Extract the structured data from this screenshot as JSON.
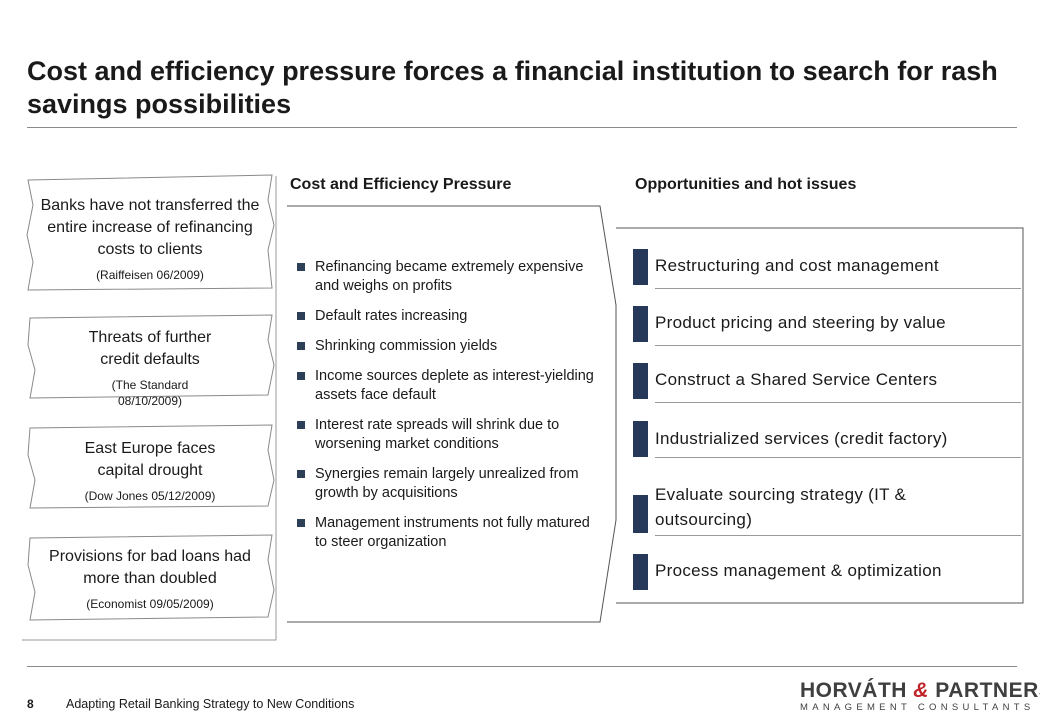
{
  "title": "Cost and efficiency pressure forces a financial institution to search for rash savings possibilities",
  "clippings": [
    {
      "headline": "Banks have not transferred the entire increase of refinancing costs to clients",
      "source": "(Raiffeisen 06/2009)"
    },
    {
      "headline": "Threats of further credit defaults",
      "source": "(The  Standard 08/10/2009)"
    },
    {
      "headline": "East Europe faces capital drought",
      "source": "(Dow Jones 05/12/2009)"
    },
    {
      "headline": "Provisions for bad loans had more than doubled",
      "source": "(Economist 09/05/2009)"
    }
  ],
  "pressure": {
    "heading": "Cost and Efficiency Pressure",
    "bullets": [
      "Refinancing became extremely expensive and weighs on profits",
      "Default rates increasing",
      "Shrinking commission yields",
      "Income sources deplete as interest-yielding assets face default",
      "Interest rate spreads will shrink due to worsening market conditions",
      "Synergies remain largely unrealized from growth by acquisitions",
      "Management instruments not fully matured to steer organization"
    ]
  },
  "opportunities": {
    "heading": "Opportunities and hot issues",
    "items": [
      "Restructuring and cost management",
      "Product pricing and steering by value",
      "Construct a Shared Service Centers",
      "Industrialized services (credit factory)",
      "Evaluate sourcing strategy (IT & outsourcing)",
      "Process management & optimization"
    ]
  },
  "footer": {
    "page_number": "8",
    "text": "Adapting Retail Banking Strategy to New Conditions"
  },
  "logo": {
    "part1": "HORVÁTH ",
    "amp": "&",
    "part2": " PARTNERS",
    "subtitle": "MANAGEMENT CONSULTANTS"
  },
  "colors": {
    "accent_bar": "#26395a",
    "bullet": "#2d3f57",
    "logo_amp": "#c0242b"
  }
}
